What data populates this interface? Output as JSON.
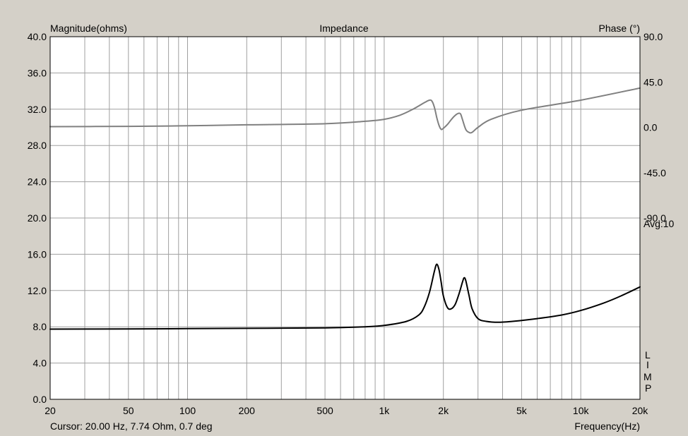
{
  "chart_data": {
    "type": "line",
    "title": "Impedance",
    "ylabel_left": "Magnitude(ohms)",
    "ylabel_right": "Phase (°)",
    "xlabel": "Frequency(Hz)",
    "x_scale": "log",
    "xlim": [
      20,
      20000
    ],
    "ylim_left": [
      0,
      40
    ],
    "ylim_right": [
      -270,
      90
    ],
    "x_tick_labels": [
      {
        "value": 20,
        "label": "20"
      },
      {
        "value": 50,
        "label": "50"
      },
      {
        "value": 100,
        "label": "100"
      },
      {
        "value": 200,
        "label": "200"
      },
      {
        "value": 500,
        "label": "500"
      },
      {
        "value": 1000,
        "label": "1k"
      },
      {
        "value": 2000,
        "label": "2k"
      },
      {
        "value": 5000,
        "label": "5k"
      },
      {
        "value": 10000,
        "label": "10k"
      },
      {
        "value": 20000,
        "label": "20k"
      }
    ],
    "y_left_ticks": [
      {
        "value": 0,
        "label": "0.0"
      },
      {
        "value": 4,
        "label": "4.0"
      },
      {
        "value": 8,
        "label": "8.0"
      },
      {
        "value": 12,
        "label": "12.0"
      },
      {
        "value": 16,
        "label": "16.0"
      },
      {
        "value": 20,
        "label": "20.0"
      },
      {
        "value": 24,
        "label": "24.0"
      },
      {
        "value": 28,
        "label": "28.0"
      },
      {
        "value": 32,
        "label": "32.0"
      },
      {
        "value": 36,
        "label": "36.0"
      },
      {
        "value": 40,
        "label": "40.0"
      }
    ],
    "y_right_ticks": [
      {
        "value": 90,
        "label": "90.0"
      },
      {
        "value": 45,
        "label": "45.0"
      },
      {
        "value": 0,
        "label": "0.0"
      },
      {
        "value": -45,
        "label": "-45.0"
      },
      {
        "value": -90,
        "label": "-90.0"
      }
    ],
    "avg_label": "Avg:10",
    "side_label": [
      "L",
      "I",
      "M",
      "P"
    ],
    "cursor_text": "Cursor: 20.00 Hz, 7.74 Ohm, 0.7 deg",
    "grid": true,
    "colors": {
      "background": "#d4d0c8",
      "plot_background": "#ffffff",
      "grid": "#a0a0a0",
      "magnitude": "#000000",
      "phase": "#808080"
    },
    "series": [
      {
        "axis": "left",
        "x": [
          20,
          50,
          100,
          200,
          500,
          800,
          1000,
          1300,
          1500,
          1600,
          1700,
          1800,
          1850,
          1900,
          1950,
          2000,
          2100,
          2200,
          2300,
          2400,
          2500,
          2550,
          2600,
          2700,
          2800,
          3000,
          3300,
          3800,
          4500,
          6000,
          8000,
          10000,
          13000,
          16000,
          20000
        ],
        "values": [
          7.74,
          7.76,
          7.8,
          7.83,
          7.88,
          8.0,
          8.15,
          8.6,
          9.3,
          10.2,
          11.8,
          14.1,
          14.9,
          14.3,
          12.9,
          11.4,
          10.1,
          10.0,
          10.5,
          11.6,
          12.9,
          13.4,
          13.1,
          11.5,
          10.0,
          8.9,
          8.6,
          8.5,
          8.6,
          8.9,
          9.3,
          9.8,
          10.6,
          11.4,
          12.4
        ]
      },
      {
        "axis": "right",
        "x": [
          20,
          50,
          100,
          200,
          500,
          800,
          1000,
          1200,
          1400,
          1600,
          1700,
          1750,
          1800,
          1850,
          1900,
          1950,
          2000,
          2100,
          2200,
          2300,
          2400,
          2450,
          2500,
          2600,
          2700,
          2800,
          3000,
          3500,
          5000,
          10000,
          20000
        ],
        "values": [
          0.7,
          1.0,
          1.6,
          2.5,
          3.6,
          6.0,
          8.0,
          12.0,
          18.0,
          24.5,
          27.0,
          26.0,
          20.0,
          10.0,
          2.0,
          -2.0,
          -1.0,
          3.0,
          8.0,
          12.0,
          14.0,
          13.0,
          8.0,
          -2.0,
          -5.0,
          -5.0,
          0.0,
          8.0,
          17.0,
          27.0,
          39.0
        ]
      }
    ]
  }
}
